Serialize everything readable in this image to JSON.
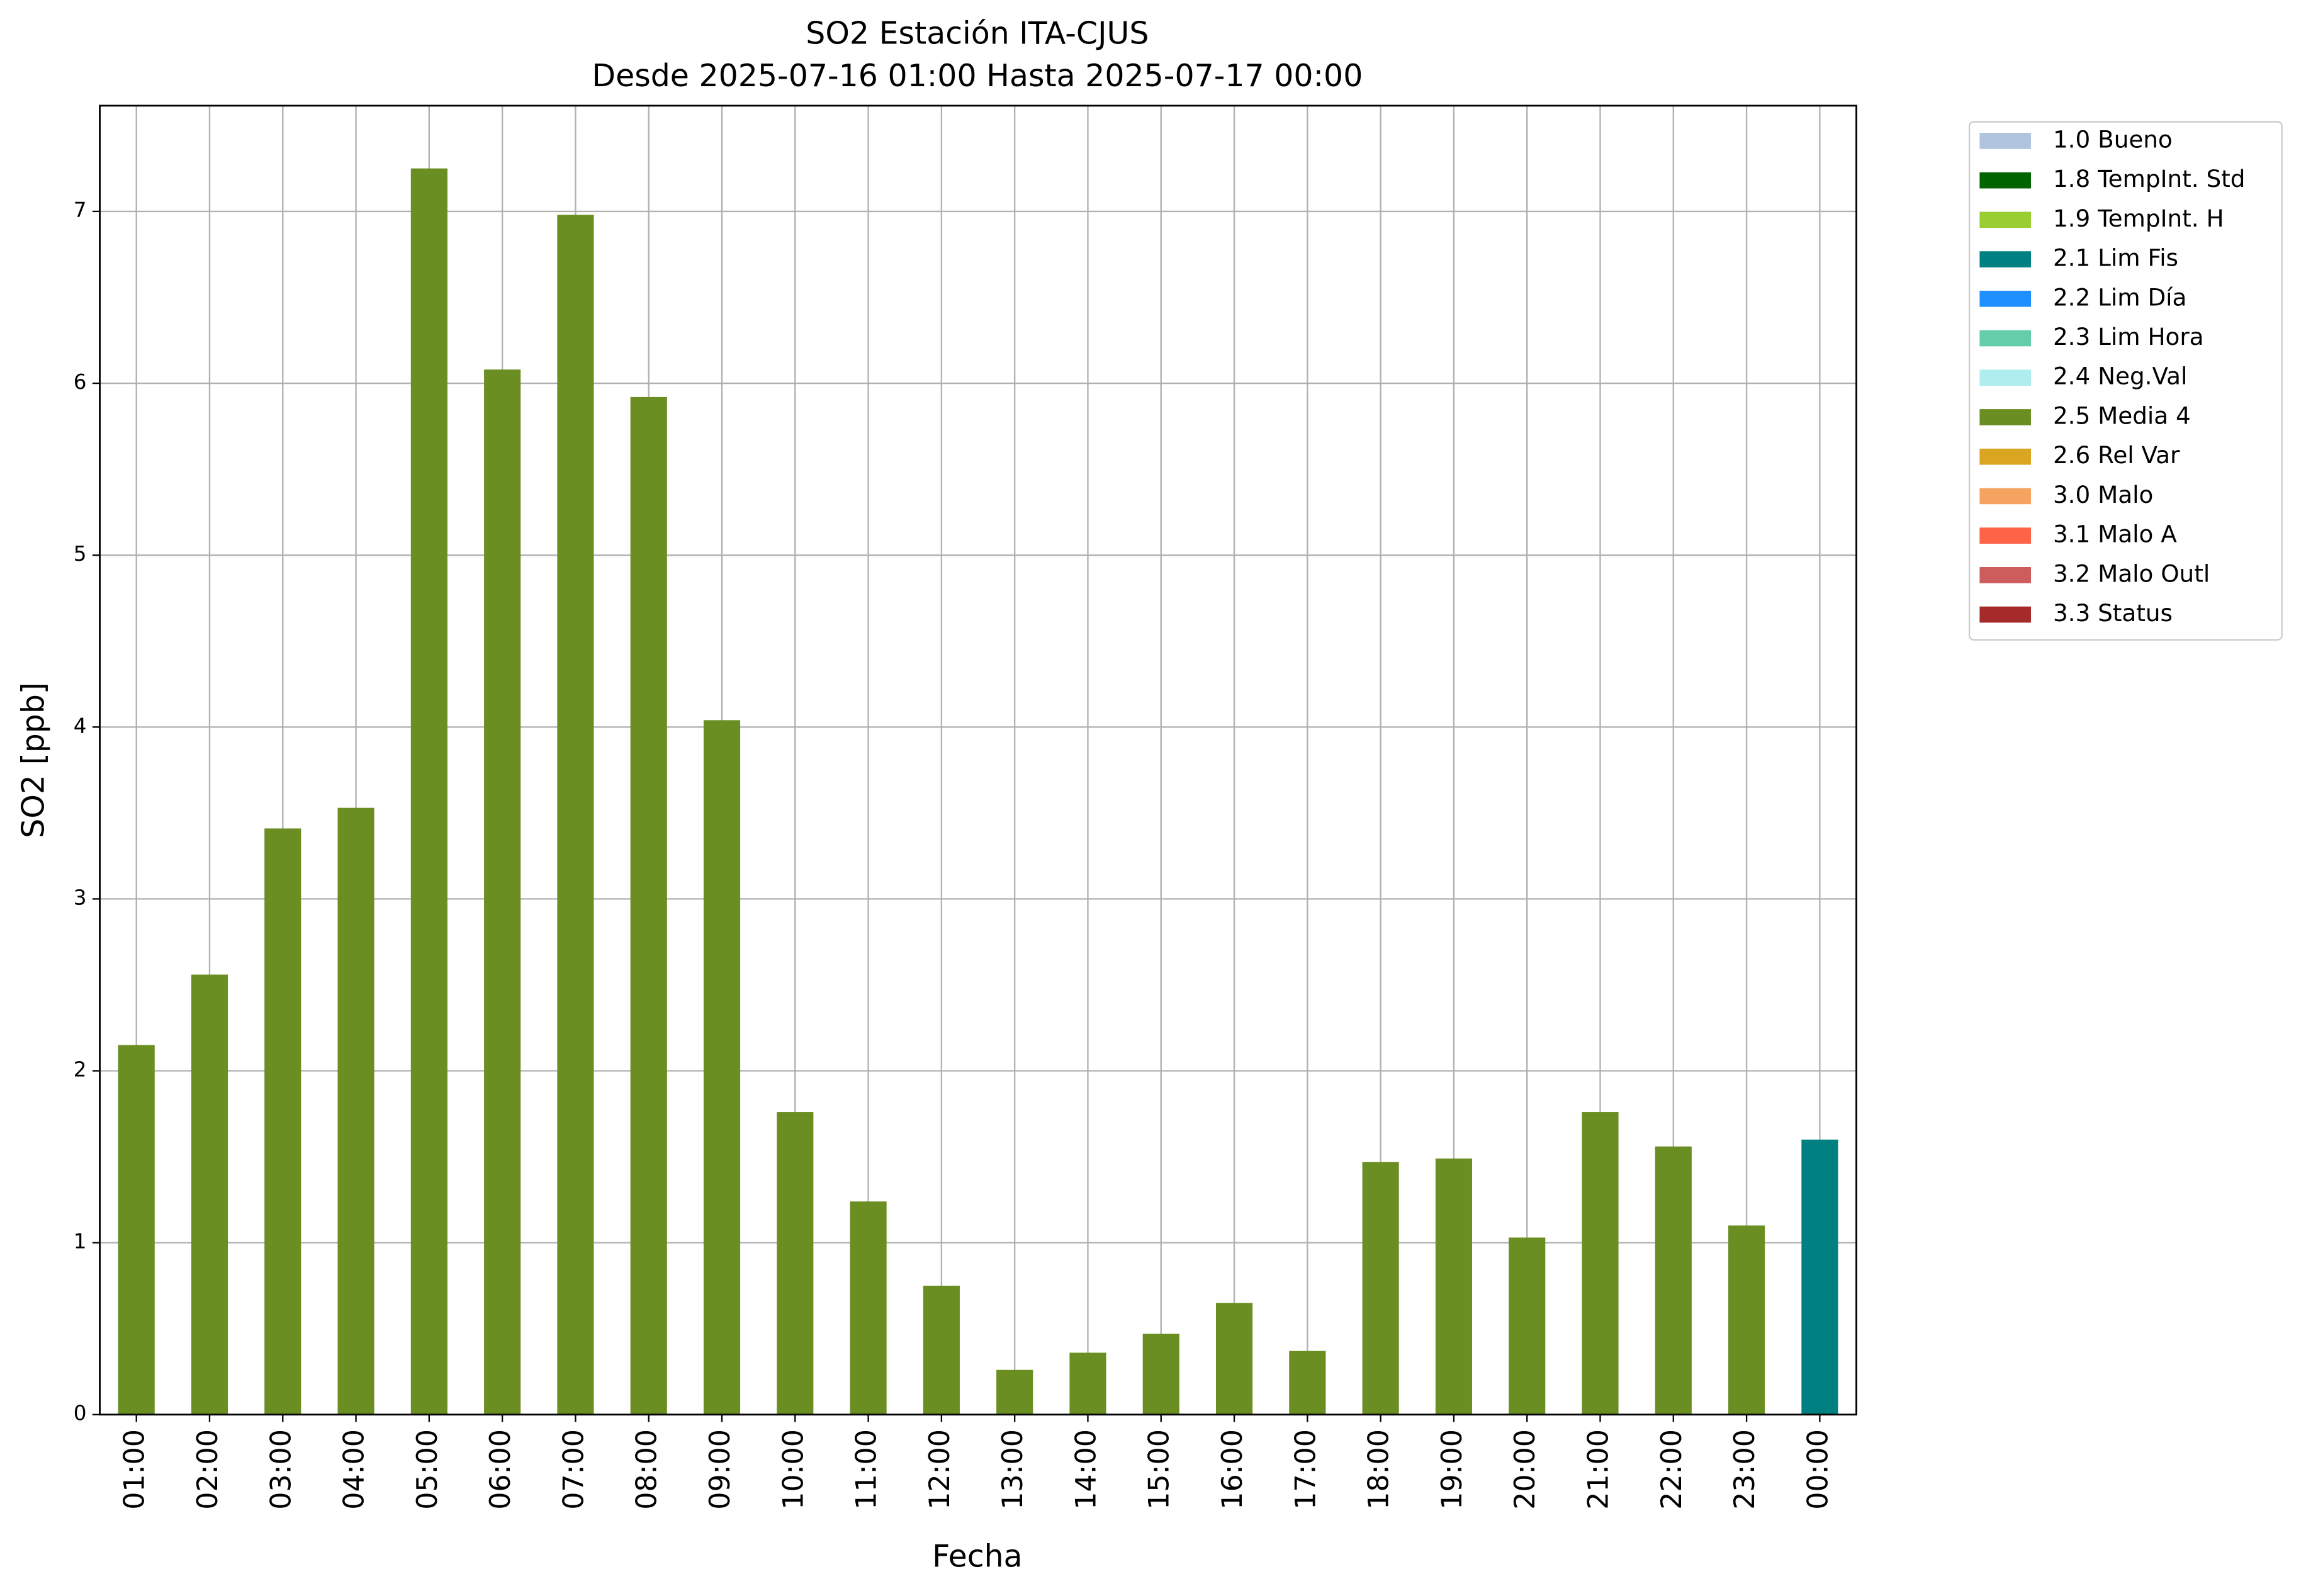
{
  "chart_data": {
    "type": "bar",
    "stacked": true,
    "title": "SO2 Estación ITA-CJUS",
    "subtitle": "Desde 2025-07-16 01:00 Hasta 2025-07-17 00:00",
    "x_label": "Fecha",
    "y_label": "SO2 [ppb]",
    "categories": [
      "01:00",
      "02:00",
      "03:00",
      "04:00",
      "05:00",
      "06:00",
      "07:00",
      "08:00",
      "09:00",
      "10:00",
      "11:00",
      "12:00",
      "13:00",
      "14:00",
      "15:00",
      "16:00",
      "17:00",
      "18:00",
      "19:00",
      "20:00",
      "21:00",
      "22:00",
      "23:00",
      "00:00"
    ],
    "ylim": [
      0,
      7.615
    ],
    "yticks": [
      0,
      1,
      2,
      3,
      4,
      5,
      6,
      7
    ],
    "grid": true,
    "legend": "outside-upper-right",
    "series": [
      {
        "name": "1.0 Bueno",
        "color": "#b0c4de",
        "values": [
          null,
          null,
          null,
          null,
          null,
          null,
          null,
          null,
          null,
          null,
          null,
          null,
          null,
          null,
          null,
          null,
          null,
          null,
          null,
          null,
          null,
          null,
          null,
          null
        ]
      },
      {
        "name": "1.8 TempInt. Std",
        "color": "#006400",
        "values": [
          null,
          null,
          null,
          null,
          null,
          null,
          null,
          null,
          null,
          null,
          null,
          null,
          null,
          null,
          null,
          null,
          null,
          null,
          null,
          null,
          null,
          null,
          null,
          null
        ]
      },
      {
        "name": "1.9 TempInt. H",
        "color": "#9acd32",
        "values": [
          null,
          null,
          null,
          null,
          null,
          null,
          null,
          null,
          null,
          null,
          null,
          null,
          null,
          null,
          null,
          null,
          null,
          null,
          null,
          null,
          null,
          null,
          null,
          null
        ]
      },
      {
        "name": "2.1 Lim Fis",
        "color": "#008080",
        "values": [
          null,
          null,
          null,
          null,
          null,
          null,
          null,
          null,
          null,
          null,
          null,
          null,
          null,
          null,
          null,
          null,
          null,
          null,
          null,
          null,
          null,
          null,
          null,
          1.6
        ]
      },
      {
        "name": "2.2 Lim Día",
        "color": "#1e90ff",
        "values": [
          null,
          null,
          null,
          null,
          null,
          null,
          null,
          null,
          null,
          null,
          null,
          null,
          null,
          null,
          null,
          null,
          null,
          null,
          null,
          null,
          null,
          null,
          null,
          null
        ]
      },
      {
        "name": "2.3 Lim Hora",
        "color": "#66cdaa",
        "values": [
          null,
          null,
          null,
          null,
          null,
          null,
          null,
          null,
          null,
          null,
          null,
          null,
          null,
          null,
          null,
          null,
          null,
          null,
          null,
          null,
          null,
          null,
          null,
          null
        ]
      },
      {
        "name": "2.4 Neg.Val",
        "color": "#afeeee",
        "values": [
          null,
          null,
          null,
          null,
          null,
          null,
          null,
          null,
          null,
          null,
          null,
          null,
          null,
          null,
          null,
          null,
          null,
          null,
          null,
          null,
          null,
          null,
          null,
          null
        ]
      },
      {
        "name": "2.5 Media 4",
        "color": "#6b8e23",
        "values": [
          2.15,
          2.56,
          3.41,
          3.53,
          7.25,
          6.08,
          6.98,
          5.92,
          4.04,
          1.76,
          1.24,
          0.75,
          0.26,
          0.36,
          0.47,
          0.65,
          0.37,
          1.47,
          1.49,
          1.03,
          1.76,
          1.56,
          1.1,
          null
        ]
      },
      {
        "name": "2.6 Rel Var",
        "color": "#daa520",
        "values": [
          null,
          null,
          null,
          null,
          null,
          null,
          null,
          null,
          null,
          null,
          null,
          null,
          null,
          null,
          null,
          null,
          null,
          null,
          null,
          null,
          null,
          null,
          null,
          null
        ]
      },
      {
        "name": "3.0 Malo",
        "color": "#f4a460",
        "values": [
          null,
          null,
          null,
          null,
          null,
          null,
          null,
          null,
          null,
          null,
          null,
          null,
          null,
          null,
          null,
          null,
          null,
          null,
          null,
          null,
          null,
          null,
          null,
          null
        ]
      },
      {
        "name": "3.1 Malo A",
        "color": "#ff6347",
        "values": [
          null,
          null,
          null,
          null,
          null,
          null,
          null,
          null,
          null,
          null,
          null,
          null,
          null,
          null,
          null,
          null,
          null,
          null,
          null,
          null,
          null,
          null,
          null,
          null
        ]
      },
      {
        "name": "3.2 Malo Outl",
        "color": "#cd5c5c",
        "values": [
          null,
          null,
          null,
          null,
          null,
          null,
          null,
          null,
          null,
          null,
          null,
          null,
          null,
          null,
          null,
          null,
          null,
          null,
          null,
          null,
          null,
          null,
          null,
          null
        ]
      },
      {
        "name": "3.3 Status",
        "color": "#a52a2a",
        "values": [
          null,
          null,
          null,
          null,
          null,
          null,
          null,
          null,
          null,
          null,
          null,
          null,
          null,
          null,
          null,
          null,
          null,
          null,
          null,
          null,
          null,
          null,
          null,
          null
        ]
      }
    ]
  }
}
